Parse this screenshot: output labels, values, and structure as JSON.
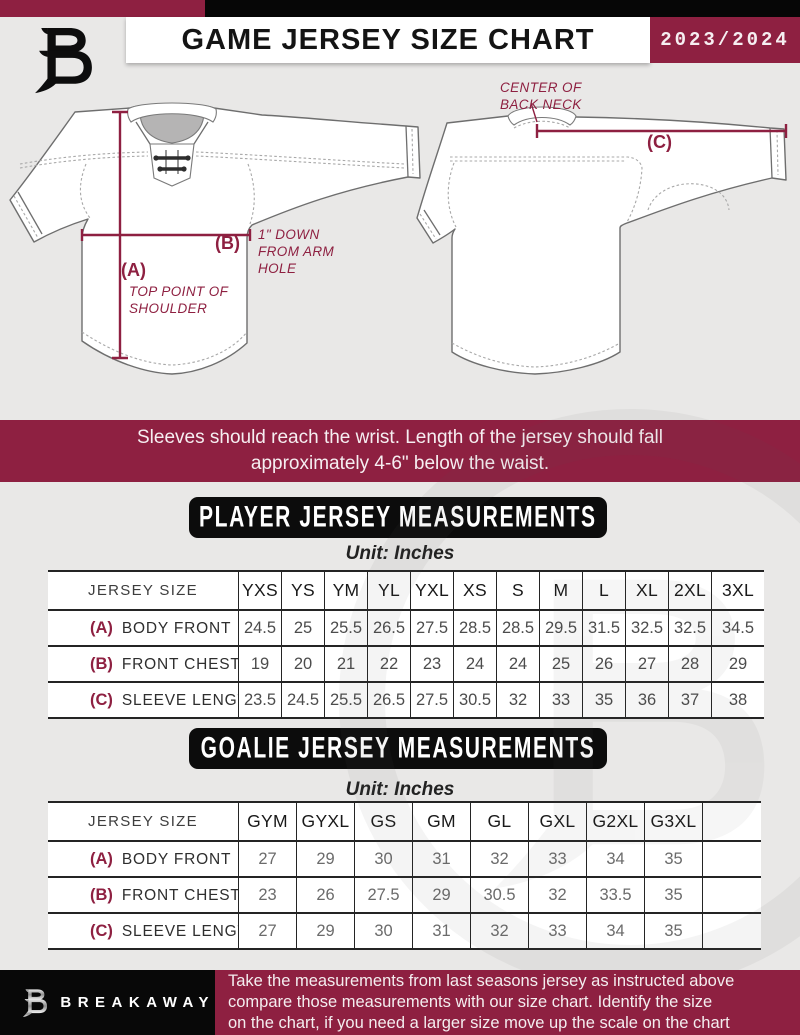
{
  "colors": {
    "maroon": "#8e2041",
    "black": "#0c0c0c",
    "page_bg": "#e9e8e7",
    "neck_gray": "#b5b4b4"
  },
  "header": {
    "title": "GAME JERSEY SIZE CHART",
    "season": "2023/2024",
    "logo_icon": "breakaway-b-logo"
  },
  "diagram": {
    "front_jersey": {
      "a_key": "(A)",
      "a_note": "TOP POINT OF SHOULDER",
      "b_key": "(B)",
      "b_note": "1\" DOWN FROM ARM HOLE"
    },
    "back_jersey": {
      "c_key": "(C)",
      "neck_note": "CENTER OF BACK NECK"
    }
  },
  "banner": {
    "lines": [
      "Sleeves should reach the wrist. Length of the jersey should fall",
      "approximately 4-6\" below the waist."
    ]
  },
  "player_section": {
    "title": "PLAYER JERSEY MEASUREMENTS",
    "unit": "Unit: Inches",
    "table": {
      "label_header": "JERSEY SIZE",
      "columns": [
        "YXS",
        "YS",
        "YM",
        "YL",
        "YXL",
        "XS",
        "S",
        "M",
        "L",
        "XL",
        "2XL",
        "3XL"
      ],
      "rows": [
        {
          "key": "(A)",
          "label": "BODY FRONT",
          "values": [
            "24.5",
            "25",
            "25.5",
            "26.5",
            "27.5",
            "28.5",
            "28.5",
            "29.5",
            "31.5",
            "32.5",
            "32.5",
            "34.5"
          ]
        },
        {
          "key": "(B)",
          "label": "FRONT CHEST",
          "values": [
            "19",
            "20",
            "21",
            "22",
            "23",
            "24",
            "24",
            "25",
            "26",
            "27",
            "28",
            "29"
          ]
        },
        {
          "key": "(C)",
          "label": "SLEEVE LENGTH",
          "values": [
            "23.5",
            "24.5",
            "25.5",
            "26.5",
            "27.5",
            "30.5",
            "32",
            "33",
            "35",
            "36",
            "37",
            "38"
          ]
        }
      ]
    }
  },
  "goalie_section": {
    "title": "GOALIE JERSEY MEASUREMENTS",
    "unit": "Unit: Inches",
    "table": {
      "label_header": "JERSEY SIZE",
      "columns": [
        "GYM",
        "GYXL",
        "GS",
        "GM",
        "GL",
        "GXL",
        "G2XL",
        "G3XL",
        ""
      ],
      "rows": [
        {
          "key": "(A)",
          "label": "BODY FRONT",
          "values": [
            "27",
            "29",
            "30",
            "31",
            "32",
            "33",
            "34",
            "35",
            ""
          ]
        },
        {
          "key": "(B)",
          "label": "FRONT CHEST",
          "values": [
            "23",
            "26",
            "27.5",
            "29",
            "30.5",
            "32",
            "33.5",
            "35",
            ""
          ]
        },
        {
          "key": "(C)",
          "label": "SLEEVE LENGTH",
          "values": [
            "27",
            "29",
            "30",
            "31",
            "32",
            "33",
            "34",
            "35",
            ""
          ]
        }
      ]
    }
  },
  "footer": {
    "brand": "BREAKAWAY",
    "logo_icon": "breakaway-b-logo",
    "lines": [
      "Take the measurements from last seasons jersey as instructed above",
      "compare those measurements  with our size chart. Identify the size",
      "on the chart, if you need a larger size move up the scale on the chart"
    ]
  }
}
